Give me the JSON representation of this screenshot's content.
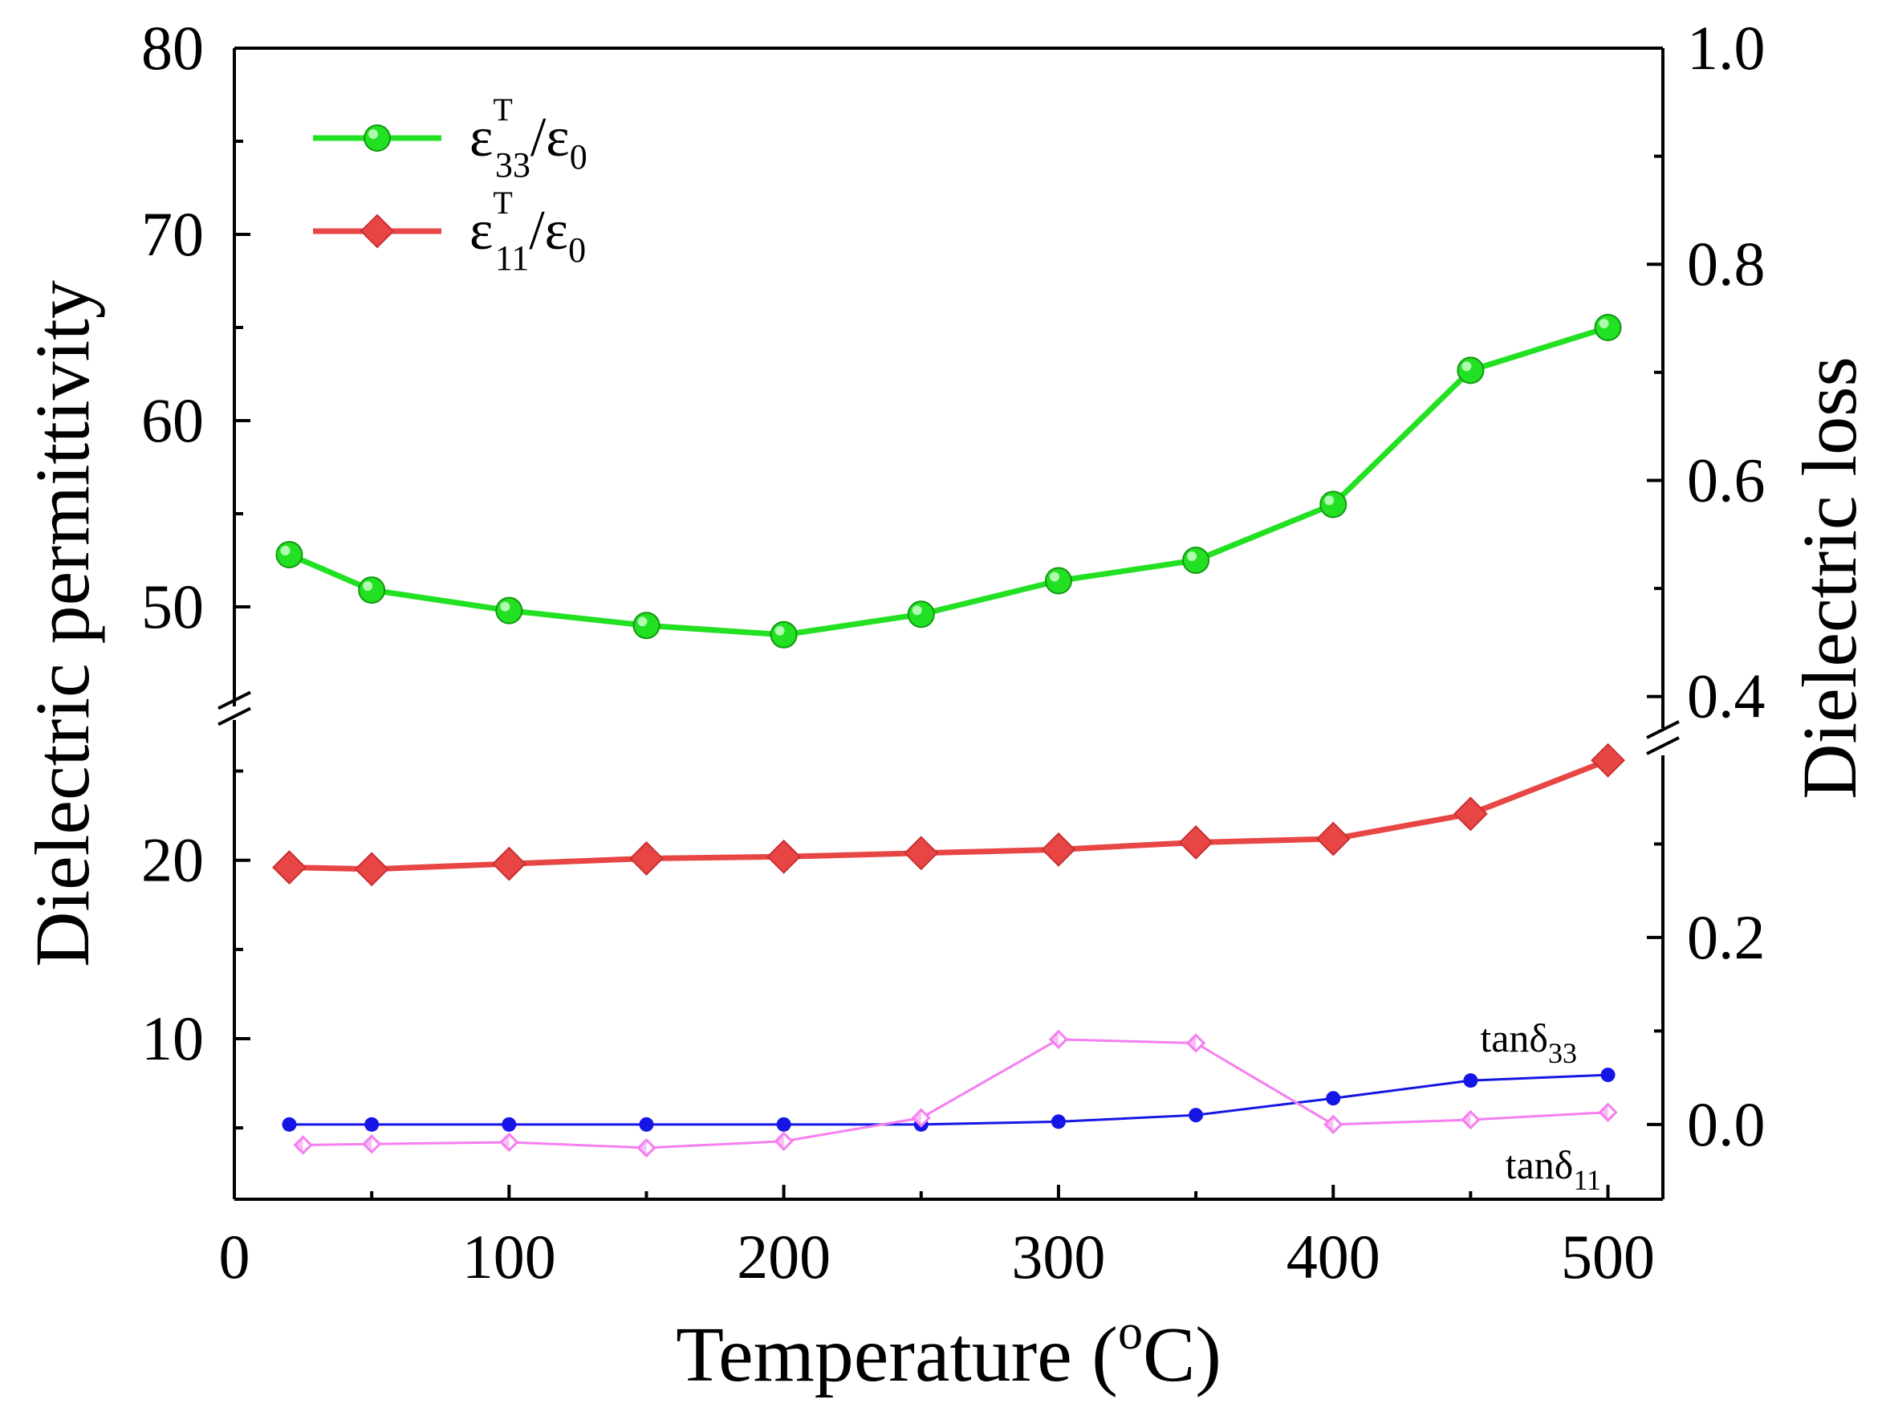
{
  "chart_data": {
    "type": "line",
    "x": [
      20,
      50,
      100,
      150,
      200,
      250,
      300,
      350,
      400,
      450,
      500
    ],
    "xlabel": "Temperature (°C)",
    "xlabel_parts": {
      "main": "Temperature (",
      "sup": "o",
      "end": "C)"
    },
    "xlim": [
      0,
      520
    ],
    "xticks": [
      0,
      100,
      200,
      300,
      400,
      500
    ],
    "ylabel_left": "Dielectric permittivity",
    "ylabel_right": "Dielectric loss",
    "left_axis_break": true,
    "left_upper_range": [
      45,
      80
    ],
    "left_upper_ticks": [
      50,
      60,
      70,
      80
    ],
    "left_lower_range": [
      1,
      27.5
    ],
    "left_lower_ticks": [
      10,
      20
    ],
    "right_axis_break": true,
    "right_upper_range": [
      0.35,
      1.0
    ],
    "right_upper_ticks": [
      0.4,
      0.6,
      0.8,
      1.0
    ],
    "right_lower_range": [
      -0.08,
      0.4
    ],
    "right_lower_ticks": [
      0.0,
      0.2
    ],
    "series": [
      {
        "name": "ε33T/ε0",
        "legend": {
          "base": "ε",
          "sub": "33",
          "sup": "T",
          "after": "/ε",
          "after_sub": "0"
        },
        "axis": "left",
        "marker": "circle",
        "color": "#22e022",
        "x": [
          20,
          50,
          100,
          150,
          200,
          250,
          300,
          350,
          400,
          450,
          500
        ],
        "values": [
          52.8,
          50.9,
          49.8,
          49.0,
          48.5,
          49.6,
          51.4,
          52.5,
          55.5,
          62.7,
          65.0
        ]
      },
      {
        "name": "ε11T/ε0",
        "legend": {
          "base": "ε",
          "sub": "11",
          "sup": "T",
          "after": "/ε",
          "after_sub": "0"
        },
        "axis": "left",
        "marker": "diamond",
        "color": "#e84545",
        "x": [
          20,
          50,
          100,
          150,
          200,
          250,
          300,
          350,
          400,
          450,
          500
        ],
        "values": [
          19.6,
          19.5,
          19.8,
          20.1,
          20.2,
          20.4,
          20.6,
          21.0,
          21.2,
          22.6,
          25.6
        ]
      },
      {
        "name": "tanδ33",
        "label": {
          "base": "tanδ",
          "sub": "33"
        },
        "axis": "right",
        "marker": "small-circle",
        "color": "#1515e6",
        "x": [
          20,
          50,
          100,
          150,
          200,
          250,
          300,
          350,
          400,
          450,
          500
        ],
        "values": [
          0.0,
          0.0,
          0.0,
          0.0,
          0.0,
          0.0,
          0.003,
          0.01,
          0.028,
          0.047,
          0.053
        ]
      },
      {
        "name": "tanδ11",
        "label": {
          "base": "tanδ",
          "sub": "11"
        },
        "axis": "right",
        "marker": "open-diamond",
        "color": "#f57ef0",
        "x": [
          25,
          50,
          100,
          150,
          200,
          250,
          300,
          350,
          400,
          450,
          500
        ],
        "values": [
          -0.022,
          -0.021,
          -0.019,
          -0.025,
          -0.018,
          0.007,
          0.091,
          0.087,
          0.0,
          0.005,
          0.013
        ]
      }
    ]
  }
}
